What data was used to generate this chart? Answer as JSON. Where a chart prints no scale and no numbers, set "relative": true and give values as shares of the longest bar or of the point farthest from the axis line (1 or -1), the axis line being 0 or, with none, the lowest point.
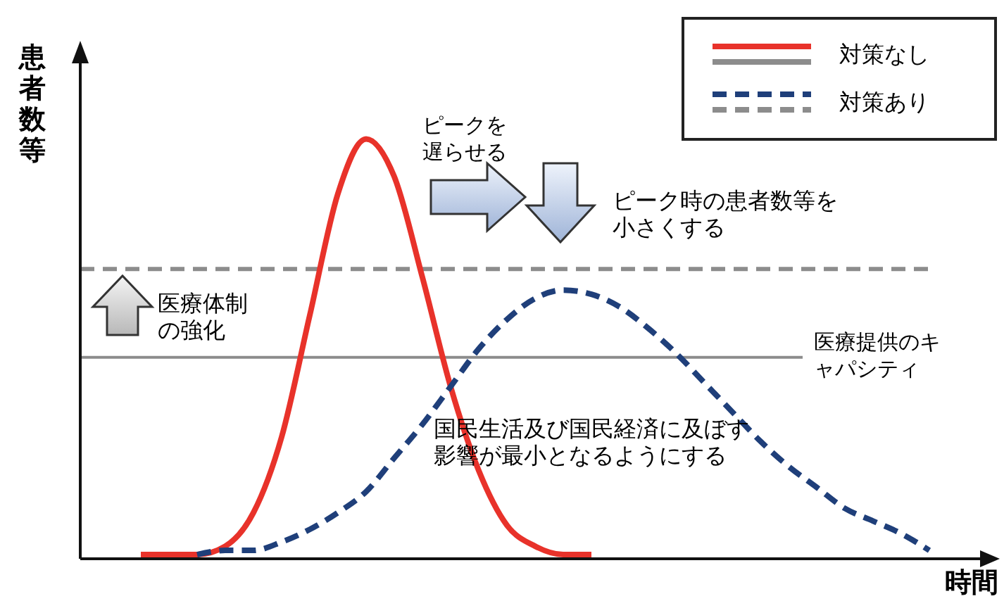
{
  "chart_data": {
    "type": "line",
    "relative": true,
    "xlabel": "時間",
    "ylabel": "患者数等",
    "legend": "top right",
    "marker": "none",
    "categories": [
      null,
      null,
      null,
      null,
      null,
      null,
      null,
      null,
      null,
      null,
      null,
      null,
      null,
      null,
      null,
      null,
      null,
      null,
      null,
      null,
      null,
      null,
      null,
      null,
      null,
      null,
      null,
      null,
      null,
      null,
      null,
      null
    ],
    "series": [
      {
        "name": "対策なし",
        "color": "#e8322a",
        "line_style": "solid",
        "values": [
          null,
          null,
          0.01,
          0.01,
          0.01,
          0.03,
          0.11,
          0.29,
          0.58,
          0.87,
          1,
          0.91,
          0.67,
          0.41,
          0.21,
          0.08,
          0.03,
          0.01,
          0.01,
          null,
          null,
          null,
          null,
          null,
          null,
          null,
          null,
          null,
          null,
          null,
          null,
          null
        ]
      },
      {
        "name": "対策あり",
        "color": "#1f3f7a",
        "line_style": "dashed",
        "values": [
          null,
          null,
          null,
          null,
          0.01,
          0.02,
          0.02,
          0.04,
          0.07,
          0.11,
          0.16,
          0.24,
          0.32,
          0.41,
          0.5,
          0.57,
          0.62,
          0.64,
          0.63,
          0.6,
          0.55,
          0.49,
          0.42,
          0.35,
          0.28,
          0.22,
          0.17,
          0.12,
          0.09,
          0.06,
          0.02,
          null
        ]
      }
    ],
    "ref_lines": [
      {
        "axis": "y",
        "value": 0.48,
        "label": "医療提供のキャパシティ",
        "color": "#8c8c8c",
        "line_style": "solid"
      },
      {
        "axis": "y",
        "value": 0.69,
        "label": null,
        "color": "#8c8c8c",
        "line_style": "dashed"
      }
    ],
    "annotations": [
      "ピークを遅らせる",
      "ピーク時の患者数等を小さくする",
      "医療体制の強化",
      "国民生活及び国民経済に及ぼす影響が最小となるようにする"
    ]
  }
}
